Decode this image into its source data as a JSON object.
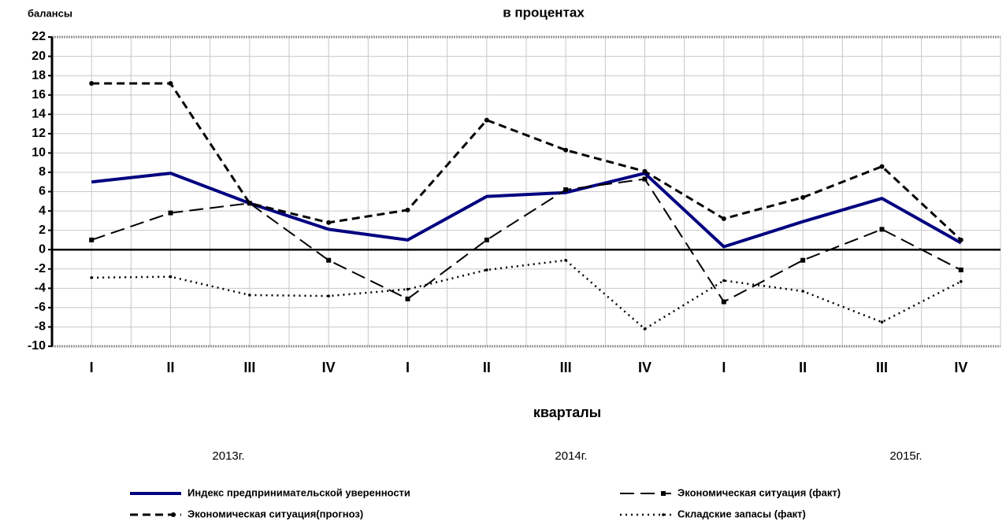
{
  "chart_data": {
    "type": "line",
    "title": "в процентах",
    "y_label": "балансы",
    "x_label": "кварталы",
    "categories": [
      "I",
      "II",
      "III",
      "IV",
      "I",
      "II",
      "III",
      "IV",
      "I",
      "II",
      "III",
      "IV"
    ],
    "year_labels": [
      "2013г.",
      "2014г.",
      "2015г."
    ],
    "ylim": [
      -10,
      22
    ],
    "yticks": [
      -10,
      -8,
      -6,
      -4,
      -2,
      0,
      2,
      4,
      6,
      8,
      10,
      12,
      14,
      16,
      18,
      20,
      22
    ],
    "grid": true,
    "series": [
      {
        "name": "Индекс предпринимательской уверенности",
        "color": "#000080",
        "style": "solid",
        "values": [
          7.0,
          7.9,
          4.8,
          2.1,
          1.0,
          5.5,
          5.9,
          7.9,
          0.3,
          2.9,
          5.3,
          0.7
        ]
      },
      {
        "name": "Экономическая ситуация (факт)",
        "color": "#000000",
        "style": "longdash",
        "values": [
          1.0,
          3.8,
          4.8,
          -1.1,
          -5.1,
          1.0,
          6.2,
          7.3,
          -5.4,
          -1.1,
          2.1,
          -2.1
        ]
      },
      {
        "name": "Экономическая ситуация(прогноз)",
        "color": "#000000",
        "style": "dash",
        "values": [
          17.2,
          17.2,
          4.8,
          2.8,
          4.1,
          13.4,
          10.3,
          8.1,
          3.2,
          5.4,
          8.6,
          1.0
        ]
      },
      {
        "name": "Складские запасы (факт)",
        "color": "#000000",
        "style": "dot",
        "values": [
          -2.9,
          -2.8,
          -4.7,
          -4.8,
          -4.1,
          -2.1,
          -1.1,
          -8.2,
          -3.2,
          -4.3,
          -7.5,
          -3.3
        ]
      }
    ]
  }
}
